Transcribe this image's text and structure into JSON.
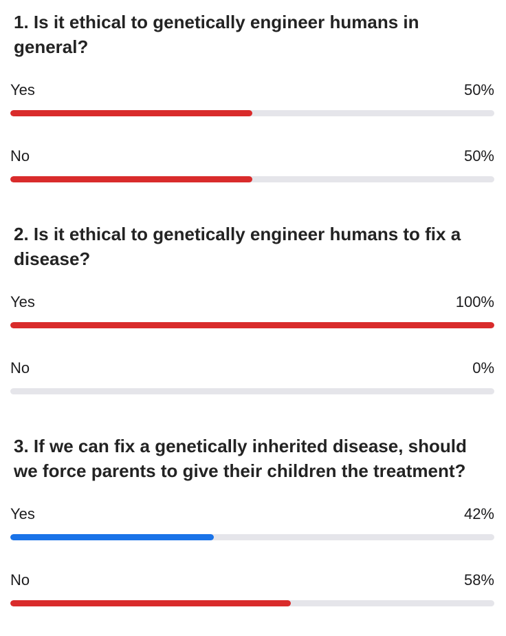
{
  "colors": {
    "red": "#d92b2b",
    "blue": "#1a73e8",
    "track": "#e5e5ea"
  },
  "questions": [
    {
      "title": "1. Is it ethical to genetically engineer humans in general?",
      "options": [
        {
          "label": "Yes",
          "percent_text": "50%",
          "value": 50,
          "color": "#d92b2b"
        },
        {
          "label": "No",
          "percent_text": "50%",
          "value": 50,
          "color": "#d92b2b"
        }
      ]
    },
    {
      "title": "2. Is it ethical to genetically engineer humans to fix a disease?",
      "options": [
        {
          "label": "Yes",
          "percent_text": "100%",
          "value": 100,
          "color": "#d92b2b"
        },
        {
          "label": "No",
          "percent_text": "0%",
          "value": 0,
          "color": "#d92b2b"
        }
      ]
    },
    {
      "title": "3. If we can fix a genetically inherited disease, should we force parents to give their children the treatment?",
      "options": [
        {
          "label": "Yes",
          "percent_text": "42%",
          "value": 42,
          "color": "#1a73e8"
        },
        {
          "label": "No",
          "percent_text": "58%",
          "value": 58,
          "color": "#d92b2b"
        }
      ]
    }
  ]
}
